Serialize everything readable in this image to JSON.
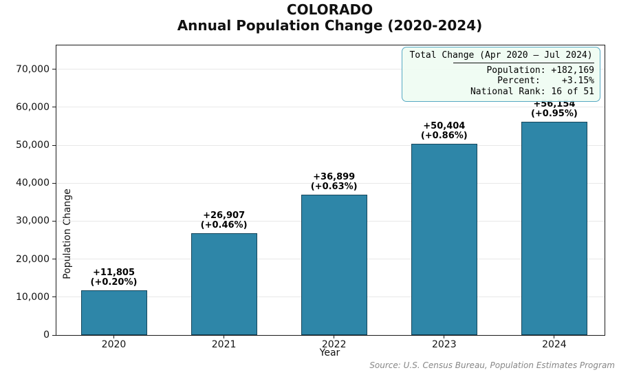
{
  "chart_data": {
    "type": "bar",
    "title": "COLORADO",
    "subtitle": "Annual Population Change (2020-2024)",
    "xlabel": "Year",
    "ylabel": "Population Change",
    "categories": [
      "2020",
      "2021",
      "2022",
      "2023",
      "2024"
    ],
    "values": [
      11805,
      26907,
      36899,
      50404,
      56154
    ],
    "value_labels": [
      "+11,805",
      "+26,907",
      "+36,899",
      "+50,404",
      "+56,154"
    ],
    "pct_labels": [
      "(+0.20%)",
      "(+0.46%)",
      "(+0.63%)",
      "(+0.86%)",
      "(+0.95%)"
    ],
    "ylim": [
      0,
      76300
    ],
    "yticks": [
      {
        "value": 0,
        "label": "0"
      },
      {
        "value": 10000,
        "label": "10,000"
      },
      {
        "value": 20000,
        "label": "20,000"
      },
      {
        "value": 30000,
        "label": "30,000"
      },
      {
        "value": 40000,
        "label": "40,000"
      },
      {
        "value": 50000,
        "label": "50,000"
      },
      {
        "value": 60000,
        "label": "60,000"
      },
      {
        "value": 70000,
        "label": "70,000"
      },
      {
        "value": 70000,
        "label": null
      }
    ],
    "grid": true,
    "legend_position": "none",
    "bar_color": "#2e86a8",
    "bar_edge_color": "#15455a",
    "grid_color": "#e8e8e8"
  },
  "info_box": {
    "title": "Total Change (Apr 2020 — Jul 2024)",
    "lines": [
      "Population: +182,169",
      "Percent:    +3.15%",
      "National Rank: 16 of 51"
    ],
    "background": "rgba(239,252,242,0.94)",
    "border_color": "#55a8c2"
  },
  "source": "Source: U.S. Census Bureau, Population Estimates Program"
}
